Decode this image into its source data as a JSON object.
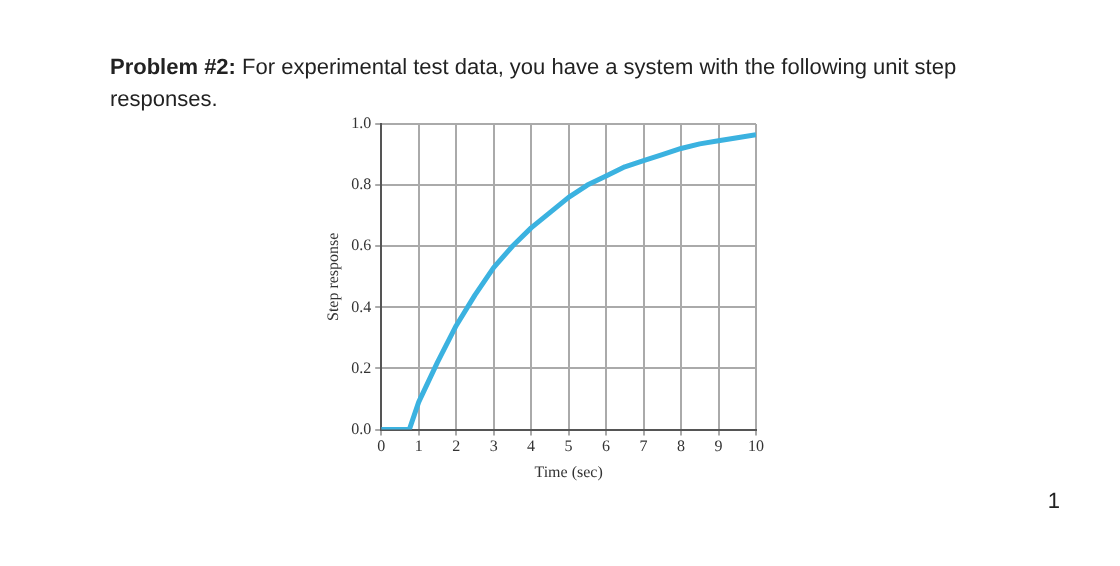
{
  "chart_data": {
    "type": "line",
    "title": "Problem #2:",
    "subtitle": "For experimental test data, you have a system with the following unit step responses.",
    "xlabel": "Time (sec)",
    "ylabel": "Step response",
    "series": [
      {
        "color": "#3bb2e0",
        "x": [
          0,
          0.75,
          1,
          1.5,
          2,
          2.5,
          3,
          3.5,
          4,
          4.5,
          5,
          5.5,
          6,
          6.5,
          7,
          7.5,
          8,
          8.5,
          9,
          9.5,
          10
        ],
        "values": [
          0,
          0,
          0.09,
          0.22,
          0.34,
          0.44,
          0.53,
          0.6,
          0.66,
          0.71,
          0.76,
          0.8,
          0.83,
          0.86,
          0.88,
          0.9,
          0.92,
          0.935,
          0.945,
          0.955,
          0.965
        ]
      }
    ],
    "xlim": [
      0,
      10
    ],
    "xticks": [
      0,
      1,
      2,
      3,
      4,
      5,
      6,
      7,
      8,
      9,
      10
    ],
    "ylim": [
      0,
      1
    ],
    "yticks": [
      {
        "value": 0,
        "label": "0.0"
      },
      {
        "value": 0.2,
        "label": "0.2"
      },
      {
        "value": 0.4,
        "label": "0.4"
      },
      {
        "value": 0.6,
        "label": "0.6"
      },
      {
        "value": 0.8,
        "label": "0.8"
      },
      {
        "value": 1,
        "label": "1.0"
      }
    ],
    "grid": true,
    "legend": false,
    "marker": "none",
    "line_style": "solid",
    "annotations": [
      "1"
    ]
  }
}
